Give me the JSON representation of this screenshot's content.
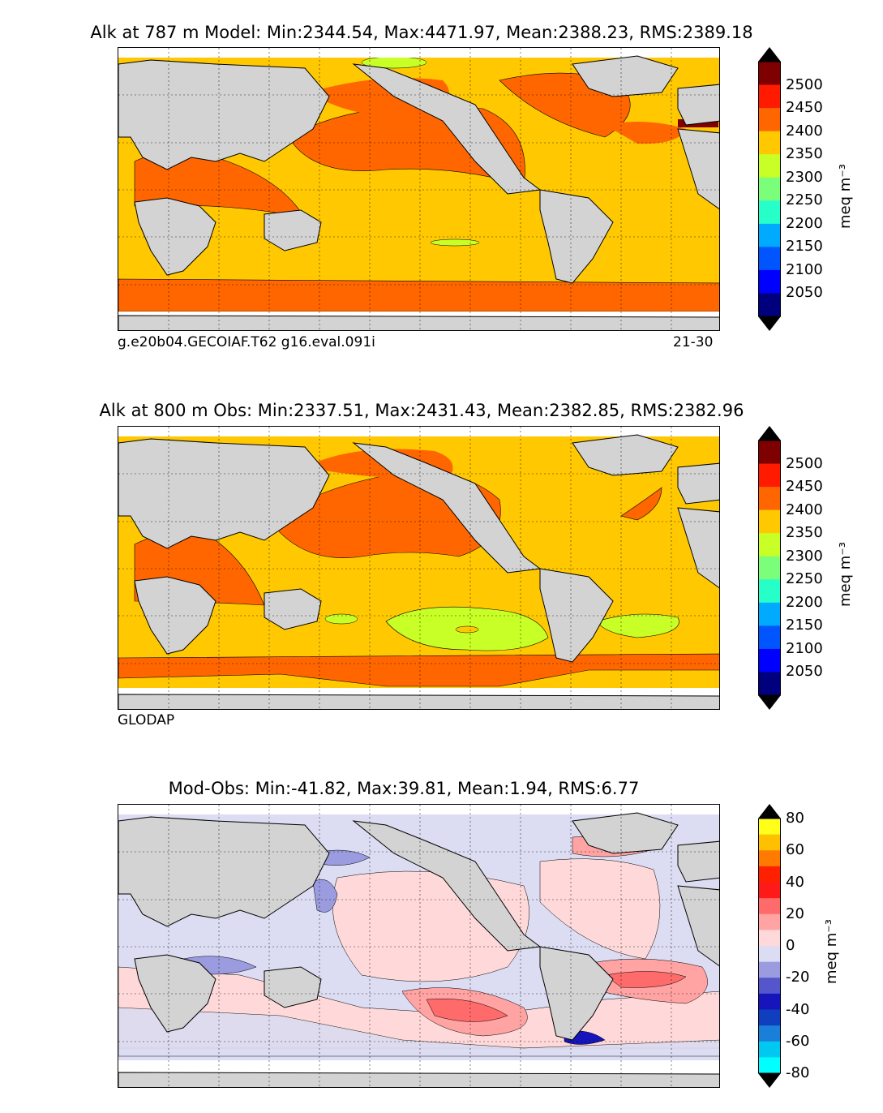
{
  "panels": [
    {
      "title": "Alk at 787 m Model: Min:2344.54, Max:4471.97, Mean:2388.23, RMS:2389.18",
      "caption_left": "g.e20b04.GECOIAF.T62 g16.eval.091i",
      "caption_right": "21-30",
      "colorbar": {
        "label": "meq m$^{-3}$",
        "label_display": "meq m⁻³",
        "ticks": [
          "2500",
          "2450",
          "2400",
          "2350",
          "2300",
          "2250",
          "2200",
          "2150",
          "2100",
          "2050"
        ],
        "colors": [
          "#7f0000",
          "#ff1a00",
          "#ff6600",
          "#ffc800",
          "#c8ff26",
          "#7bff7b",
          "#26ffc8",
          "#00aaff",
          "#0055ff",
          "#0000ff",
          "#00007f"
        ],
        "extend_top": "#7f0000",
        "extend_bottom": "#00007f"
      }
    },
    {
      "title": "Alk at 800 m Obs: Min:2337.51, Max:2431.43, Mean:2382.85, RMS:2382.96",
      "caption_left": "GLODAP",
      "caption_right": "",
      "colorbar": {
        "label": "meq m$^{-3}$",
        "label_display": "meq m⁻³",
        "ticks": [
          "2500",
          "2450",
          "2400",
          "2350",
          "2300",
          "2250",
          "2200",
          "2150",
          "2100",
          "2050"
        ],
        "colors": [
          "#7f0000",
          "#ff1a00",
          "#ff6600",
          "#ffc800",
          "#c8ff26",
          "#7bff7b",
          "#26ffc8",
          "#00aaff",
          "#0055ff",
          "#0000ff",
          "#00007f"
        ],
        "extend_top": "#7f0000",
        "extend_bottom": "#00007f"
      }
    },
    {
      "title": "Mod-Obs: Min:-41.82, Max:39.81, Mean:1.94, RMS:6.77",
      "caption_left": "",
      "caption_right": "",
      "colorbar": {
        "label": "meq m$^{-3}$",
        "label_display": "meq m⁻³",
        "ticks": [
          "80",
          "60",
          "40",
          "20",
          "0",
          "-20",
          "-40",
          "-60",
          "-80"
        ],
        "colors": [
          "#ffff19",
          "#ffc000",
          "#ff7a00",
          "#ff2000",
          "#ff1a1a",
          "#ff6b6b",
          "#ffa3a3",
          "#ffd9d9",
          "#dcdcf2",
          "#9b9be0",
          "#5555cc",
          "#1515bb",
          "#0f3fbf",
          "#1a7fd9",
          "#00c8f0",
          "#00ffff"
        ],
        "extend_top": "#ffff19",
        "extend_bottom": "#00ffff"
      }
    }
  ]
}
